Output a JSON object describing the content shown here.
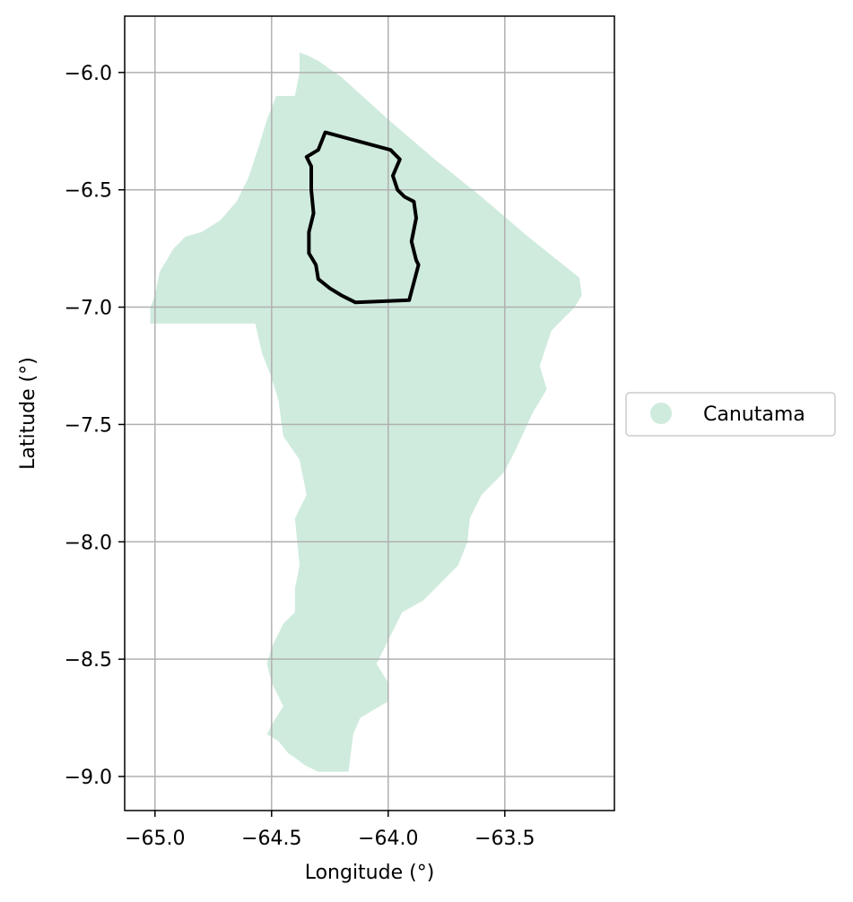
{
  "chart_data": {
    "type": "map",
    "xlabel": "Longitude (°)",
    "ylabel": "Latitude (°)",
    "xlim": [
      -65.13,
      -63.03
    ],
    "ylim": [
      -9.145,
      -5.76
    ],
    "xticks": [
      -65.0,
      -64.5,
      -64.0,
      -63.5
    ],
    "xtick_labels": [
      "−65.0",
      "−64.5",
      "−64.0",
      "−63.5"
    ],
    "yticks": [
      -6.0,
      -6.5,
      -7.0,
      -7.5,
      -8.0,
      -8.5,
      -9.0
    ],
    "ytick_labels": [
      "−6.0",
      "−6.5",
      "−7.0",
      "−7.5",
      "−8.0",
      "−8.5",
      "−9.0"
    ],
    "grid": true,
    "legend": {
      "placement": "right",
      "entries": [
        {
          "label": "Canutama",
          "color": "#cfebdd"
        }
      ]
    },
    "region": {
      "name": "Canutama",
      "fill_color": "#cfebdd",
      "boundary": [
        [
          -64.38,
          -5.915
        ],
        [
          -64.35,
          -5.925
        ],
        [
          -64.3,
          -5.95
        ],
        [
          -64.2,
          -6.02
        ],
        [
          -64.0,
          -6.2
        ],
        [
          -63.8,
          -6.37
        ],
        [
          -63.6,
          -6.53
        ],
        [
          -63.4,
          -6.7
        ],
        [
          -63.18,
          -6.875
        ],
        [
          -63.17,
          -6.95
        ],
        [
          -63.2,
          -7.0
        ],
        [
          -63.3,
          -7.1
        ],
        [
          -63.35,
          -7.25
        ],
        [
          -63.32,
          -7.35
        ],
        [
          -63.38,
          -7.45
        ],
        [
          -63.45,
          -7.6
        ],
        [
          -63.5,
          -7.7
        ],
        [
          -63.6,
          -7.8
        ],
        [
          -63.65,
          -7.9
        ],
        [
          -63.66,
          -8.0
        ],
        [
          -63.7,
          -8.1
        ],
        [
          -63.8,
          -8.2
        ],
        [
          -63.85,
          -8.25
        ],
        [
          -63.94,
          -8.3
        ],
        [
          -64.0,
          -8.42
        ],
        [
          -64.05,
          -8.52
        ],
        [
          -64.0,
          -8.6
        ],
        [
          -64.0,
          -8.68
        ],
        [
          -64.12,
          -8.75
        ],
        [
          -64.15,
          -8.82
        ],
        [
          -64.17,
          -8.98
        ],
        [
          -64.3,
          -8.98
        ],
        [
          -64.36,
          -8.95
        ],
        [
          -64.4,
          -8.92
        ],
        [
          -64.43,
          -8.9
        ],
        [
          -64.47,
          -8.85
        ],
        [
          -64.52,
          -8.82
        ],
        [
          -64.5,
          -8.78
        ],
        [
          -64.45,
          -8.7
        ],
        [
          -64.5,
          -8.6
        ],
        [
          -64.52,
          -8.52
        ],
        [
          -64.5,
          -8.45
        ],
        [
          -64.45,
          -8.35
        ],
        [
          -64.4,
          -8.3
        ],
        [
          -64.4,
          -8.2
        ],
        [
          -64.38,
          -8.1
        ],
        [
          -64.4,
          -7.9
        ],
        [
          -64.35,
          -7.8
        ],
        [
          -64.38,
          -7.65
        ],
        [
          -64.45,
          -7.55
        ],
        [
          -64.47,
          -7.4
        ],
        [
          -64.5,
          -7.3
        ],
        [
          -64.54,
          -7.2
        ],
        [
          -64.57,
          -7.07
        ],
        [
          -65.02,
          -7.07
        ],
        [
          -65.02,
          -7.0
        ],
        [
          -65.0,
          -6.95
        ],
        [
          -64.98,
          -6.85
        ],
        [
          -64.92,
          -6.75
        ],
        [
          -64.87,
          -6.7
        ],
        [
          -64.8,
          -6.68
        ],
        [
          -64.72,
          -6.63
        ],
        [
          -64.65,
          -6.55
        ],
        [
          -64.6,
          -6.45
        ],
        [
          -64.55,
          -6.3
        ],
        [
          -64.52,
          -6.2
        ],
        [
          -64.48,
          -6.1
        ],
        [
          -64.4,
          -6.1
        ],
        [
          -64.38,
          -6.0
        ]
      ]
    },
    "outline": {
      "stroke_color": "#000000",
      "boundary": [
        [
          -64.27,
          -6.255
        ],
        [
          -63.99,
          -6.33
        ],
        [
          -63.95,
          -6.37
        ],
        [
          -63.98,
          -6.44
        ],
        [
          -63.96,
          -6.5
        ],
        [
          -63.93,
          -6.53
        ],
        [
          -63.89,
          -6.55
        ],
        [
          -63.88,
          -6.62
        ],
        [
          -63.9,
          -6.72
        ],
        [
          -63.88,
          -6.8
        ],
        [
          -63.87,
          -6.82
        ],
        [
          -63.91,
          -6.97
        ],
        [
          -64.14,
          -6.98
        ],
        [
          -64.2,
          -6.95
        ],
        [
          -64.25,
          -6.92
        ],
        [
          -64.3,
          -6.88
        ],
        [
          -64.31,
          -6.82
        ],
        [
          -64.34,
          -6.77
        ],
        [
          -64.34,
          -6.68
        ],
        [
          -64.32,
          -6.6
        ],
        [
          -64.33,
          -6.5
        ],
        [
          -64.33,
          -6.4
        ],
        [
          -64.35,
          -6.36
        ],
        [
          -64.3,
          -6.33
        ]
      ]
    }
  }
}
